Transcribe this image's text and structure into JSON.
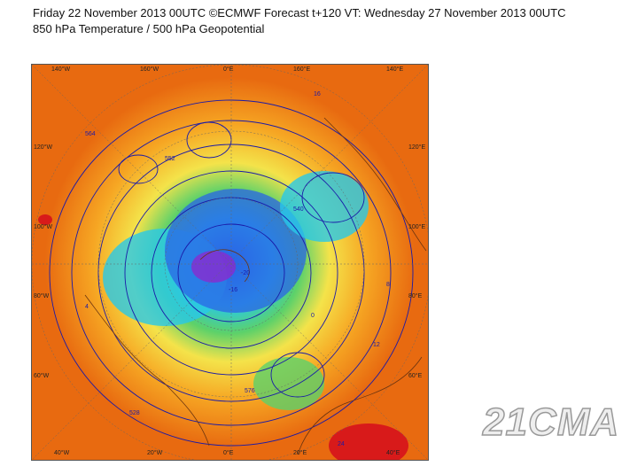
{
  "header": {
    "line1": "Friday 22 November 2013 00UTC ©ECMWF Forecast t+120 VT: Wednesday 27 November 2013 00UTC",
    "line2": "850 hPa Temperature / 500 hPa Geopotential"
  },
  "map": {
    "projection": "north-polar-stereographic",
    "lon_labels_top": [
      "140°W",
      "160°W",
      "0°E",
      "160°E",
      "140°E"
    ],
    "lon_labels_bottom": [
      "40°W",
      "20°W",
      "0°E",
      "20°E",
      "40°E"
    ],
    "lat_labels_left": [
      "120°W",
      "100°W",
      "80°W",
      "60°W"
    ],
    "lat_labels_right": [
      "120°E",
      "100°E",
      "80°E",
      "60°E"
    ],
    "contour_labels": [
      "552",
      "576",
      "16",
      "8",
      "-20",
      "-16",
      "4",
      "12",
      "0",
      "540",
      "564",
      "528",
      "24"
    ],
    "colors": {
      "warm": "#e86a10",
      "mid": "#f6a623",
      "yellow": "#f4e34a",
      "green": "#5cd16a",
      "cyan": "#28c8e8",
      "blue": "#2b64e6",
      "cold": "#8a2bd0",
      "hot": "#d81a1a",
      "contour": "#1a1aa8"
    }
  },
  "watermark": "21CMA"
}
